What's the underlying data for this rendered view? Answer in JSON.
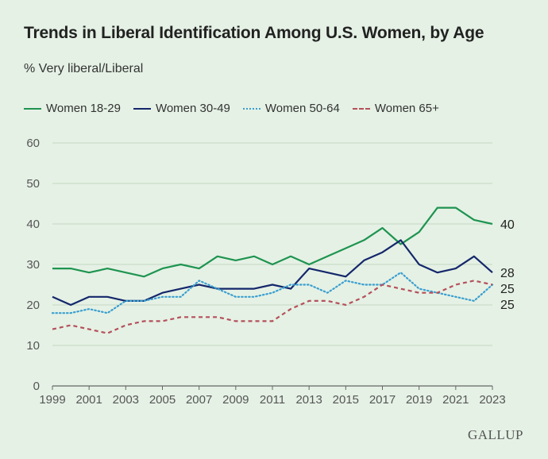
{
  "chart_data": {
    "type": "line",
    "title": "Trends in Liberal Identification Among U.S. Women, by Age",
    "subtitle": "% Very liberal/Liberal",
    "xlabel": "",
    "ylabel": "",
    "ylim": [
      0,
      60
    ],
    "yticks": [
      0,
      10,
      20,
      30,
      40,
      50,
      60
    ],
    "xlim": [
      1999,
      2023
    ],
    "xticks": [
      1999,
      2001,
      2003,
      2005,
      2007,
      2009,
      2011,
      2013,
      2015,
      2017,
      2019,
      2021,
      2023
    ],
    "grid": true,
    "legend_position": "top",
    "x": [
      1999,
      2000,
      2001,
      2002,
      2003,
      2004,
      2005,
      2006,
      2007,
      2008,
      2009,
      2010,
      2011,
      2012,
      2013,
      2014,
      2015,
      2016,
      2017,
      2018,
      2019,
      2020,
      2021,
      2022,
      2023
    ],
    "series": [
      {
        "name": "Women 18-29",
        "color": "#1e9450",
        "style": "solid",
        "end_label": "40",
        "values": [
          29,
          29,
          28,
          29,
          28,
          27,
          29,
          30,
          29,
          32,
          31,
          32,
          30,
          32,
          30,
          32,
          34,
          36,
          39,
          35,
          38,
          44,
          44,
          41,
          40
        ]
      },
      {
        "name": "Women 30-49",
        "color": "#14276b",
        "style": "solid",
        "end_label": "28",
        "values": [
          22,
          20,
          22,
          22,
          21,
          21,
          23,
          24,
          25,
          24,
          24,
          24,
          25,
          24,
          29,
          28,
          27,
          31,
          33,
          36,
          30,
          28,
          29,
          32,
          28
        ]
      },
      {
        "name": "Women 50-64",
        "color": "#3a9fd0",
        "style": "dotted",
        "end_label": "25",
        "values": [
          18,
          18,
          19,
          18,
          21,
          21,
          22,
          22,
          26,
          24,
          22,
          22,
          23,
          25,
          25,
          23,
          26,
          25,
          25,
          28,
          24,
          23,
          22,
          21,
          25
        ]
      },
      {
        "name": "Women 65+",
        "color": "#b5505a",
        "style": "dashed",
        "end_label": "25",
        "values": [
          14,
          15,
          14,
          13,
          15,
          16,
          16,
          17,
          17,
          17,
          16,
          16,
          16,
          19,
          21,
          21,
          20,
          22,
          25,
          24,
          23,
          23,
          25,
          26,
          25
        ]
      }
    ],
    "gridline_color": "#c4d6c4",
    "axis_color": "#666666"
  },
  "brand": "GALLUP"
}
